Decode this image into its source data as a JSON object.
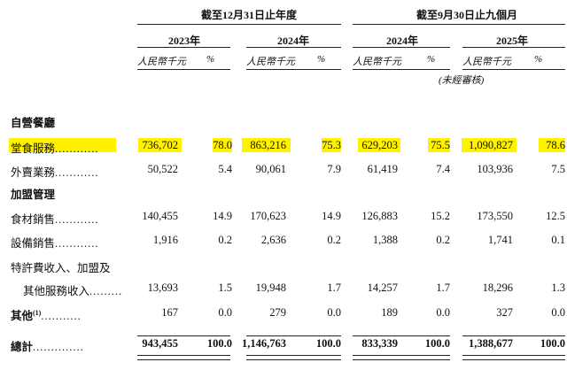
{
  "header": {
    "group1_title": "截至12月31日止年度",
    "group2_title": "截至9月30日止九個月",
    "years": [
      "2023年",
      "2024年",
      "2024年",
      "2025年"
    ],
    "unit_amount": "人民幣千元",
    "unit_pct": "%",
    "unaudited": "(未經審核)"
  },
  "sections": {
    "dining": "自營餐廳",
    "franchise": "加盟管理"
  },
  "rows": [
    {
      "label": "堂食服務",
      "dots": "............",
      "values": [
        "736,702",
        "78.0",
        "863,216",
        "75.3",
        "629,203",
        "75.5",
        "1,090,827",
        "78.6"
      ]
    },
    {
      "label": "外賣業務",
      "dots": "............",
      "values": [
        "50,522",
        "5.4",
        "90,061",
        "7.9",
        "61,419",
        "7.4",
        "103,936",
        "7.5"
      ]
    },
    {
      "label": "食材銷售",
      "dots": "............",
      "values": [
        "140,455",
        "14.9",
        "170,623",
        "14.9",
        "126,883",
        "15.2",
        "173,550",
        "12.5"
      ]
    },
    {
      "label": "設備銷售",
      "dots": "............",
      "values": [
        "1,916",
        "0.2",
        "2,636",
        "0.2",
        "1,388",
        "0.2",
        "1,741",
        "0.1"
      ]
    },
    {
      "label": "特許費收入、加盟及",
      "dots": ""
    },
    {
      "label": "其他服務收入",
      "dots": ".........",
      "values": [
        "13,693",
        "1.5",
        "19,948",
        "1.7",
        "14,257",
        "1.7",
        "18,296",
        "1.3"
      ]
    },
    {
      "label": "其他",
      "sup": "(1)",
      "dots": "...........",
      "values": [
        "167",
        "0.0",
        "279",
        "0.0",
        "189",
        "0.0",
        "327",
        "0.0"
      ]
    },
    {
      "label": "總計",
      "dots": "..............",
      "values": [
        "943,455",
        "100.0",
        "1,146,763",
        "100.0",
        "833,339",
        "100.0",
        "1,388,677",
        "100.0"
      ]
    }
  ],
  "colors": {
    "highlight": "#fff200"
  }
}
